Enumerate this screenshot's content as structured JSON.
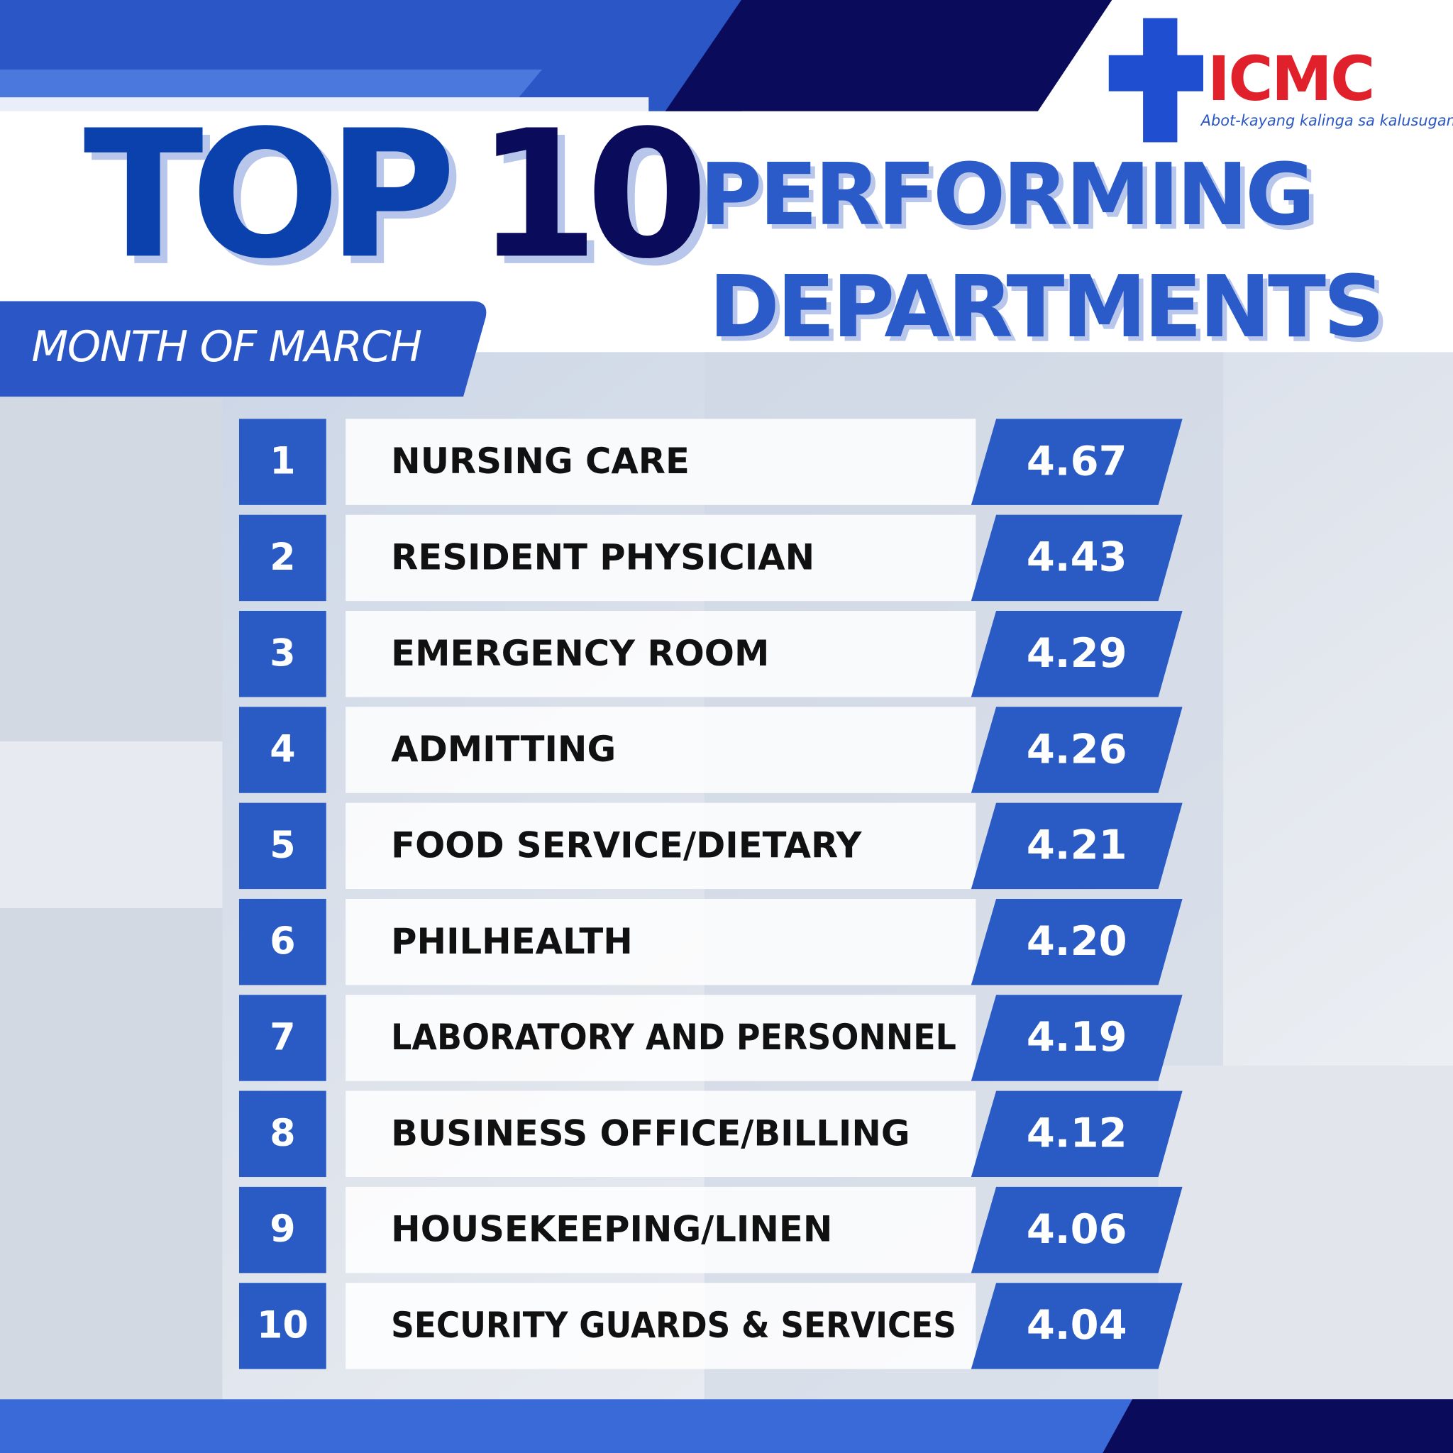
{
  "header": {
    "title_top": "TOP",
    "title_number": "10",
    "title_line1": "PERFORMING",
    "title_line2": "DEPARTMENTS",
    "period": "MONTH OF MARCH"
  },
  "logo": {
    "name": "ICMC",
    "tagline": "Abot-kayang kalinga sa kalusugan"
  },
  "table": {
    "rows": [
      [
        "1",
        "NURSING CARE",
        "4.67"
      ],
      [
        "2",
        "RESIDENT PHYSICIAN",
        "4.43"
      ],
      [
        "3",
        "EMERGENCY ROOM",
        "4.29"
      ],
      [
        "4",
        "ADMITTING",
        "4.26"
      ],
      [
        "5",
        "FOOD SERVICE/DIETARY",
        "4.21"
      ],
      [
        "6",
        "PHILHEALTH",
        "4.20"
      ],
      [
        "7",
        "LABORATORY AND PERSONNEL",
        "4.19"
      ],
      [
        "8",
        "BUSINESS OFFICE/BILLING",
        "4.12"
      ],
      [
        "9",
        "HOUSEKEEPING/LINEN",
        "4.06"
      ],
      [
        "10",
        "SECURITY GUARDS & SERVICES",
        "4.04"
      ]
    ]
  }
}
